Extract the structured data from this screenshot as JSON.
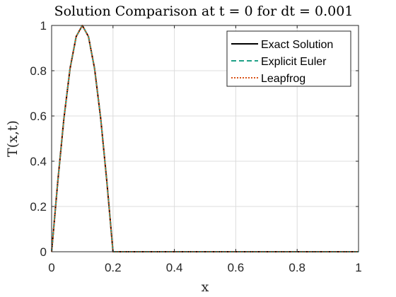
{
  "chart_data": {
    "type": "line",
    "title": "Solution Comparison at t = 0 for dt = 0.001",
    "xlabel": "x",
    "ylabel": "T(x,t)",
    "xlim": [
      0,
      1
    ],
    "ylim": [
      0,
      1
    ],
    "x_ticks": [
      "0",
      "0.2",
      "0.4",
      "0.6",
      "0.8",
      "1"
    ],
    "y_ticks": [
      "0",
      "0.2",
      "0.4",
      "0.6",
      "0.8",
      "1"
    ],
    "grid": true,
    "legend_position": "top-right",
    "x": [
      0,
      0.02,
      0.04,
      0.06,
      0.08,
      0.1,
      0.12,
      0.14,
      0.16,
      0.18,
      0.2,
      0.22,
      0.24,
      0.26,
      0.28,
      0.3,
      0.32,
      0.34,
      0.36,
      0.38,
      0.4,
      0.42,
      0.44,
      0.46,
      0.48,
      0.5,
      0.52,
      0.54,
      0.56,
      0.58,
      0.6,
      0.62,
      0.64,
      0.66,
      0.68,
      0.7,
      0.72,
      0.74,
      0.76,
      0.78,
      0.8,
      0.82,
      0.84,
      0.86,
      0.88,
      0.9,
      0.92,
      0.94,
      0.96,
      0.98,
      1.0
    ],
    "series": [
      {
        "name": "Exact Solution",
        "color": "#000000",
        "style": "solid",
        "values": [
          0,
          0.309,
          0.588,
          0.809,
          0.951,
          1.0,
          0.951,
          0.809,
          0.588,
          0.309,
          0,
          0,
          0,
          0,
          0,
          0,
          0,
          0,
          0,
          0,
          0,
          0,
          0,
          0,
          0,
          0,
          0,
          0,
          0,
          0,
          0,
          0,
          0,
          0,
          0,
          0,
          0,
          0,
          0,
          0,
          0,
          0,
          0,
          0,
          0,
          0,
          0,
          0,
          0,
          0,
          0
        ]
      },
      {
        "name": "Explicit Euler",
        "color": "#1fa187",
        "style": "dashed",
        "values": [
          0,
          0.309,
          0.588,
          0.809,
          0.951,
          1.0,
          0.951,
          0.809,
          0.588,
          0.309,
          0,
          0,
          0,
          0,
          0,
          0,
          0,
          0,
          0,
          0,
          0,
          0,
          0,
          0,
          0,
          0,
          0,
          0,
          0,
          0,
          0,
          0,
          0,
          0,
          0,
          0,
          0,
          0,
          0,
          0,
          0,
          0,
          0,
          0,
          0,
          0,
          0,
          0,
          0,
          0,
          0
        ]
      },
      {
        "name": "Leapfrog",
        "color": "#d95319",
        "style": "dotted",
        "values": [
          0,
          0.309,
          0.588,
          0.809,
          0.951,
          1.0,
          0.951,
          0.809,
          0.588,
          0.309,
          0,
          0,
          0,
          0,
          0,
          0,
          0,
          0,
          0,
          0,
          0,
          0,
          0,
          0,
          0,
          0,
          0,
          0,
          0,
          0,
          0,
          0,
          0,
          0,
          0,
          0,
          0,
          0,
          0,
          0,
          0,
          0,
          0,
          0,
          0,
          0,
          0,
          0,
          0,
          0,
          0
        ]
      }
    ]
  }
}
